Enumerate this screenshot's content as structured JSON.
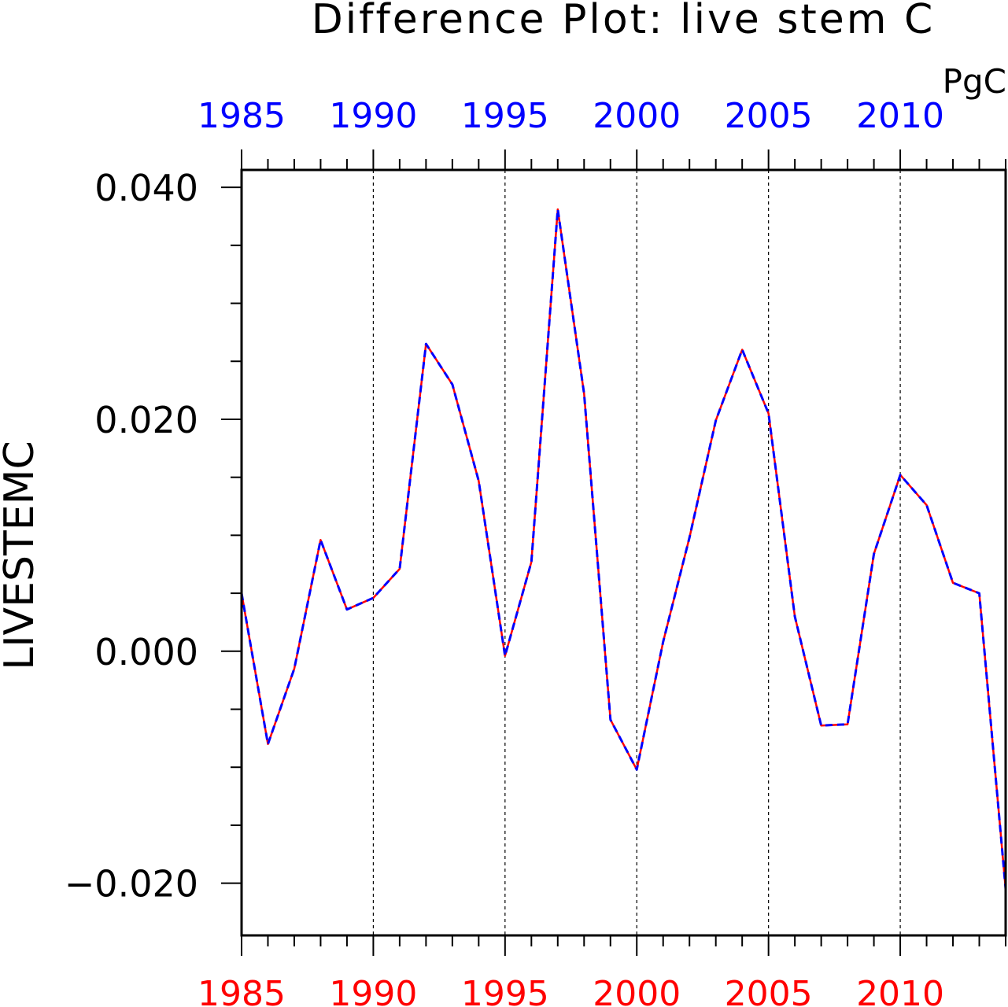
{
  "chart_data": {
    "type": "line",
    "title": "Difference Plot: live stem C",
    "units": "PgC",
    "ylabel": "LIVESTEMC",
    "xlabel": "",
    "xlim": [
      1985,
      2014
    ],
    "ylim": [
      -0.0245,
      0.0415
    ],
    "x_ticks": [
      1985,
      1990,
      1995,
      2000,
      2005,
      2010
    ],
    "x_tick_labels": [
      "1985",
      "1990",
      "1995",
      "2000",
      "2005",
      "2010"
    ],
    "y_ticks": [
      -0.02,
      0.0,
      0.02,
      0.04
    ],
    "y_tick_labels": [
      "−0.020",
      "0.000",
      "0.020",
      "0.040"
    ],
    "grid": "vertical dashed at major x ticks",
    "x": [
      1985,
      1986,
      1987,
      1988,
      1989,
      1990,
      1991,
      1992,
      1993,
      1994,
      1995,
      1996,
      1997,
      1998,
      1999,
      2000,
      2001,
      2002,
      2003,
      2004,
      2005,
      2006,
      2007,
      2008,
      2009,
      2010,
      2011,
      2012,
      2013,
      2014
    ],
    "series": [
      {
        "color": "#ff0000",
        "dash": "solid",
        "values": [
          0.005,
          -0.008,
          -0.0015,
          0.0096,
          0.0036,
          0.0046,
          0.0071,
          0.0265,
          0.023,
          0.0147,
          -0.0004,
          0.0077,
          0.0381,
          0.0222,
          -0.0059,
          -0.0102,
          0.0008,
          0.0098,
          0.0199,
          0.026,
          0.0205,
          0.003,
          -0.0064,
          -0.0063,
          0.0084,
          0.0152,
          0.0126,
          0.0059,
          0.005,
          -0.0205
        ]
      },
      {
        "color": "#0000ff",
        "dash": "dashed",
        "values": [
          0.005,
          -0.008,
          -0.0015,
          0.0096,
          0.0036,
          0.0046,
          0.0071,
          0.0265,
          0.023,
          0.0147,
          -0.0004,
          0.0077,
          0.0381,
          0.0222,
          -0.0059,
          -0.0102,
          0.0008,
          0.0098,
          0.0199,
          0.026,
          0.0205,
          0.003,
          -0.0064,
          -0.0063,
          0.0084,
          0.0152,
          0.0126,
          0.0059,
          0.005,
          -0.0205
        ]
      }
    ],
    "colors": {
      "top_axis_labels": "#0000ff",
      "bottom_axis_labels": "#ff0000",
      "axes": "#000000"
    }
  }
}
